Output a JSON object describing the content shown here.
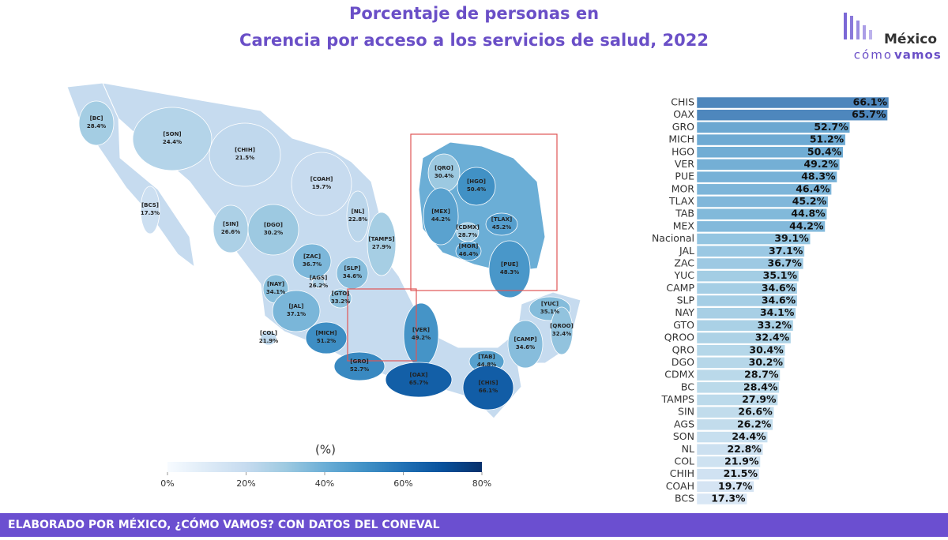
{
  "header": {
    "title_line1": "Porcentaje de personas en",
    "title_line2": "Carencia por acceso a los servicios de salud, 2022",
    "logo_top": "México",
    "logo_bottom_light": "cómo",
    "logo_bottom_bold": "vamos"
  },
  "chart_data": {
    "type": "bar",
    "orientation": "horizontal",
    "categories": [
      "CHIS",
      "OAX",
      "GRO",
      "MICH",
      "HGO",
      "VER",
      "PUE",
      "MOR",
      "TLAX",
      "TAB",
      "MEX",
      "Nacional",
      "JAL",
      "ZAC",
      "YUC",
      "CAMP",
      "SLP",
      "NAY",
      "GTO",
      "QROO",
      "QRO",
      "DGO",
      "CDMX",
      "BC",
      "TAMPS",
      "SIN",
      "AGS",
      "SON",
      "NL",
      "COL",
      "CHIH",
      "COAH",
      "BCS"
    ],
    "values": [
      66.1,
      65.7,
      52.7,
      51.2,
      50.4,
      49.2,
      48.3,
      46.4,
      45.2,
      44.8,
      44.2,
      39.1,
      37.1,
      36.7,
      35.1,
      34.6,
      34.6,
      34.1,
      33.2,
      32.4,
      30.4,
      30.2,
      28.7,
      28.4,
      27.9,
      26.6,
      26.2,
      24.4,
      22.8,
      21.9,
      21.5,
      19.7,
      17.3
    ],
    "value_labels": [
      "66.1%",
      "65.7%",
      "52.7%",
      "51.2%",
      "50.4%",
      "49.2%",
      "48.3%",
      "46.4%",
      "45.2%",
      "44.8%",
      "44.2%",
      "39.1%",
      "37.1%",
      "36.7%",
      "35.1%",
      "34.6%",
      "34.6%",
      "34.1%",
      "33.2%",
      "32.4%",
      "30.4%",
      "30.2%",
      "28.7%",
      "28.4%",
      "27.9%",
      "26.6%",
      "26.2%",
      "24.4%",
      "22.8%",
      "21.9%",
      "21.5%",
      "19.7%",
      "17.3%"
    ],
    "colorscale": [
      "#f7fbff",
      "#deebf7",
      "#c6dbef",
      "#9ecae1",
      "#6baed6",
      "#4292c6",
      "#2171b5",
      "#08519c",
      "#08306b"
    ],
    "colorbar": {
      "title": "(%)",
      "lim": [
        0,
        80
      ],
      "ticks": [
        {
          "value": 0,
          "label": "0%"
        },
        {
          "value": 20,
          "label": "20%"
        },
        {
          "value": 40,
          "label": "40%"
        },
        {
          "value": 60,
          "label": "60%"
        },
        {
          "value": 80,
          "label": "80%"
        }
      ]
    }
  },
  "map": {
    "states": [
      {
        "code": "[BC]",
        "value": 28.4,
        "label": "28.4%"
      },
      {
        "code": "[SON]",
        "value": 24.4,
        "label": "24.4%"
      },
      {
        "code": "[CHIH]",
        "value": 21.5,
        "label": "21.5%"
      },
      {
        "code": "[COAH]",
        "value": 19.7,
        "label": "19.7%"
      },
      {
        "code": "[BCS]",
        "value": 17.3,
        "label": "17.3%"
      },
      {
        "code": "[NL]",
        "value": 22.8,
        "label": "22.8%"
      },
      {
        "code": "[SIN]",
        "value": 26.6,
        "label": "26.6%"
      },
      {
        "code": "[DGO]",
        "value": 30.2,
        "label": "30.2%"
      },
      {
        "code": "[TAMPS]",
        "value": 27.9,
        "label": "27.9%"
      },
      {
        "code": "[ZAC]",
        "value": 36.7,
        "label": "36.7%"
      },
      {
        "code": "[SLP]",
        "value": 34.6,
        "label": "34.6%"
      },
      {
        "code": "[AGS]",
        "value": 26.2,
        "label": "26.2%"
      },
      {
        "code": "[NAY]",
        "value": 34.1,
        "label": "34.1%"
      },
      {
        "code": "[GTO]",
        "value": 33.2,
        "label": "33.2%"
      },
      {
        "code": "[JAL]",
        "value": 37.1,
        "label": "37.1%"
      },
      {
        "code": "[COL]",
        "value": 21.9,
        "label": "21.9%"
      },
      {
        "code": "[MICH]",
        "value": 51.2,
        "label": "51.2%"
      },
      {
        "code": "[VER]",
        "value": 49.2,
        "label": "49.2%"
      },
      {
        "code": "[GRO]",
        "value": 52.7,
        "label": "52.7%"
      },
      {
        "code": "[TAB]",
        "value": 44.8,
        "label": "44.8%"
      },
      {
        "code": "[CAMP]",
        "value": 34.6,
        "label": "34.6%"
      },
      {
        "code": "[YUC]",
        "value": 35.1,
        "label": "35.1%"
      },
      {
        "code": "[QROO]",
        "value": 32.4,
        "label": "32.4%"
      },
      {
        "code": "[OAX]",
        "value": 65.7,
        "label": "65.7%"
      },
      {
        "code": "[CHIS]",
        "value": 66.1,
        "label": "66.1%"
      },
      {
        "code": "[QRO]",
        "value": 30.4,
        "label": "30.4%"
      },
      {
        "code": "[HGO]",
        "value": 50.4,
        "label": "50.4%"
      },
      {
        "code": "[MEX]",
        "value": 44.2,
        "label": "44.2%"
      },
      {
        "code": "[TLAX]",
        "value": 45.2,
        "label": "45.2%"
      },
      {
        "code": "[CDMX]",
        "value": 28.7,
        "label": "28.7%"
      },
      {
        "code": "[MOR]",
        "value": 46.4,
        "label": "46.4%"
      },
      {
        "code": "[PUE]",
        "value": 48.3,
        "label": "48.3%"
      }
    ]
  },
  "footer": {
    "text": "ELABORADO POR MÉXICO, ¿CÓMO VAMOS? CON DATOS DEL CONEVAL"
  }
}
